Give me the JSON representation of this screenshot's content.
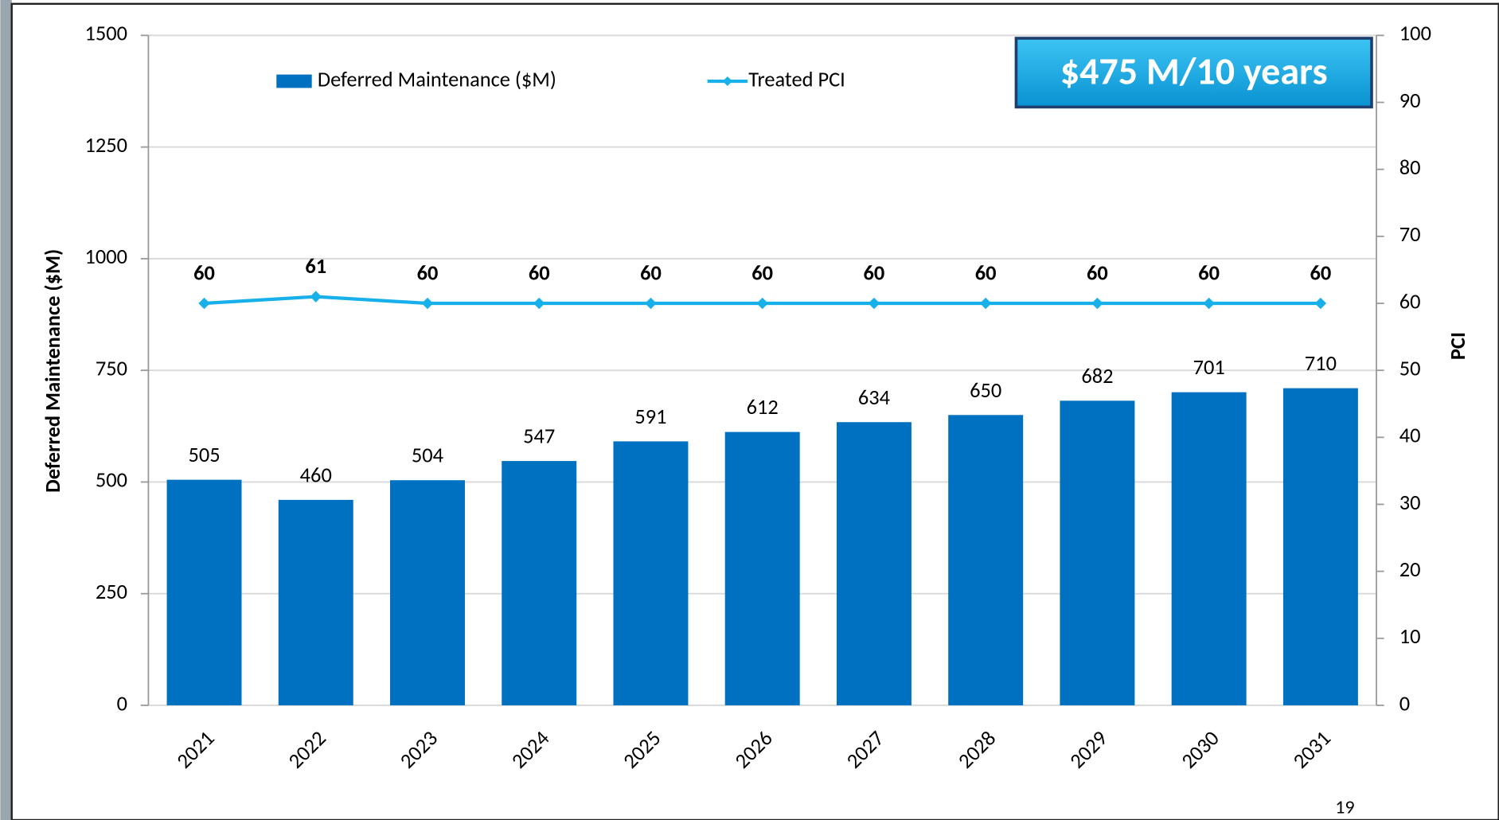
{
  "chart_data": {
    "type": "bar",
    "categories": [
      "2021",
      "2022",
      "2023",
      "2024",
      "2025",
      "2026",
      "2027",
      "2028",
      "2029",
      "2030",
      "2031"
    ],
    "series": [
      {
        "name": "Deferred Maintenance ($M)",
        "type": "bar",
        "color": "#0070c0",
        "values": [
          505,
          460,
          504,
          547,
          591,
          612,
          634,
          650,
          682,
          701,
          710
        ]
      },
      {
        "name": "Treated PCI",
        "type": "line",
        "axis": "y2",
        "color": "#17b0ea",
        "values": [
          60,
          61,
          60,
          60,
          60,
          60,
          60,
          60,
          60,
          60,
          60
        ]
      }
    ],
    "y_label": "Deferred Maintenance ($M)",
    "y2_label": "PCI",
    "ylim": [
      0,
      1500
    ],
    "yticks": [
      0,
      250,
      500,
      750,
      1000,
      1250,
      1500
    ],
    "y2lim": [
      0,
      100
    ],
    "y2ticks": [
      0,
      10,
      20,
      30,
      40,
      50,
      60,
      70,
      80,
      90,
      100
    ],
    "grid": true,
    "legend": "top",
    "annotation": "$475 M/10 years"
  },
  "page_number": "19"
}
